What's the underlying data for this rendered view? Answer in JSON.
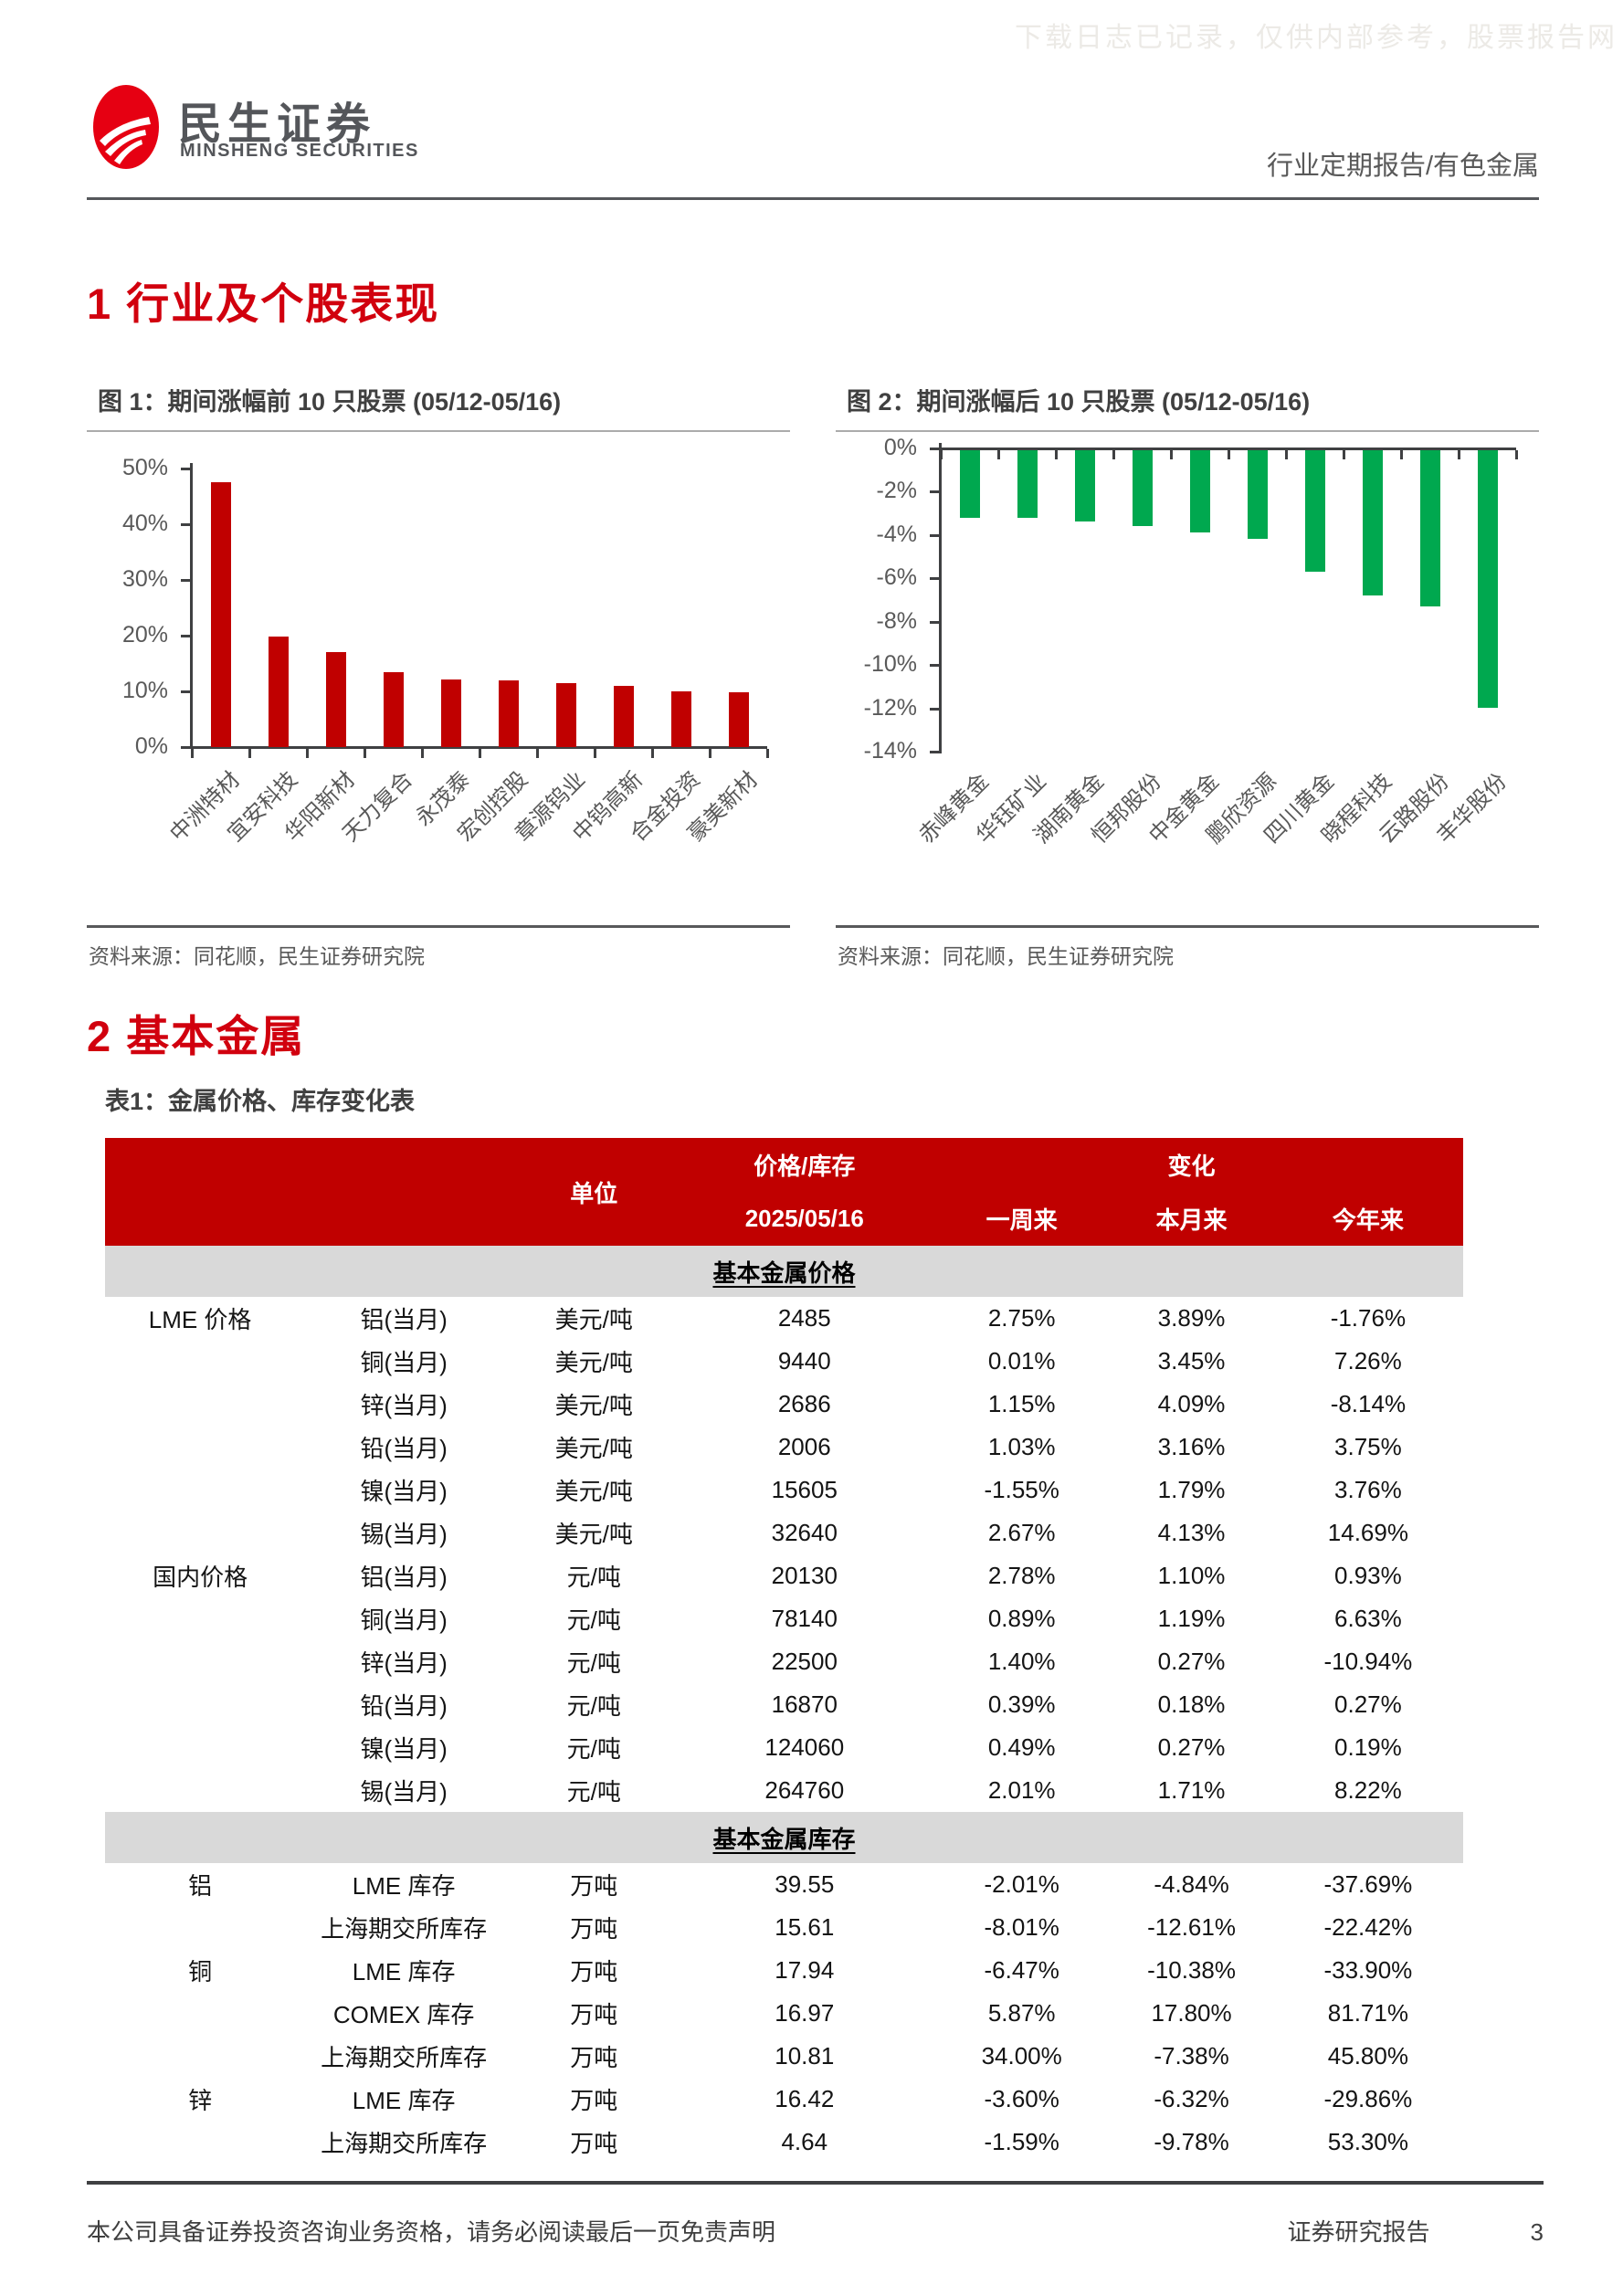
{
  "watermark": "下载日志已记录，仅供内部参考，股票报告网",
  "header": {
    "brand_cn": "民生证券",
    "brand_en": "MINSHENG SECURITIES",
    "report_type": "行业定期报告/有色金属"
  },
  "section1_title": "1 行业及个股表现",
  "section2_title": "2 基本金属",
  "colors": {
    "accent_red": "#d1000e",
    "table_header_red": "#c00000",
    "bar_red": "#c00000",
    "bar_green": "#00a84f",
    "subheader_gray": "#d9d9d9"
  },
  "chart_data": [
    {
      "type": "bar",
      "title": "图 1：期间涨幅前 10 只股票 (05/12-05/16)",
      "categories": [
        "中洲特材",
        "宜安科技",
        "华阳新材",
        "天力复合",
        "永茂泰",
        "宏创控股",
        "章源钨业",
        "中钨高新",
        "合金投资",
        "豪美新材"
      ],
      "values": [
        47.6,
        19.8,
        17.1,
        13.5,
        12.1,
        11.9,
        11.4,
        11.0,
        10.0,
        9.8
      ],
      "unit": "%",
      "ylim": [
        0,
        50
      ],
      "yticks_top_to_bottom": [
        "50%",
        "40%",
        "30%",
        "20%",
        "10%",
        "0%"
      ],
      "bar_color": "#c00000",
      "grid": false,
      "legend": "none",
      "source": "资料来源：同花顺，民生证券研究院"
    },
    {
      "type": "bar",
      "title": "图 2：期间涨幅后 10 只股票 (05/12-05/16)",
      "categories": [
        "赤峰黄金",
        "华钰矿业",
        "湖南黄金",
        "恒邦股份",
        "中金黄金",
        "鹏欣资源",
        "四川黄金",
        "晓程科技",
        "云路股份",
        "丰华股份"
      ],
      "values": [
        -3.1,
        -3.1,
        -3.3,
        -3.5,
        -3.8,
        -4.1,
        -5.6,
        -6.7,
        -7.2,
        -11.9
      ],
      "unit": "%",
      "ylim": [
        -14,
        0
      ],
      "yticks_top_to_bottom": [
        "0%",
        "-2%",
        "-4%",
        "-6%",
        "-8%",
        "-10%",
        "-12%",
        "-14%"
      ],
      "bar_color": "#00a84f",
      "grid": false,
      "legend": "none",
      "source": "资料来源：同花顺，民生证券研究院"
    }
  ],
  "table": {
    "title": "表1：金属价格、库存变化表",
    "header": {
      "unit": "单位",
      "price_inventory": "价格/库存",
      "change": "变化",
      "date": "2025/05/16",
      "week": "一周来",
      "month": "本月来",
      "year": "今年来"
    },
    "sections": [
      {
        "label": "基本金属价格",
        "rows": [
          {
            "group": "LME 价格",
            "item": "铝(当月)",
            "unit": "美元/吨",
            "value": "2485",
            "week": "2.75%",
            "month": "3.89%",
            "year": "-1.76%"
          },
          {
            "group": "",
            "item": "铜(当月)",
            "unit": "美元/吨",
            "value": "9440",
            "week": "0.01%",
            "month": "3.45%",
            "year": "7.26%"
          },
          {
            "group": "",
            "item": "锌(当月)",
            "unit": "美元/吨",
            "value": "2686",
            "week": "1.15%",
            "month": "4.09%",
            "year": "-8.14%"
          },
          {
            "group": "",
            "item": "铅(当月)",
            "unit": "美元/吨",
            "value": "2006",
            "week": "1.03%",
            "month": "3.16%",
            "year": "3.75%"
          },
          {
            "group": "",
            "item": "镍(当月)",
            "unit": "美元/吨",
            "value": "15605",
            "week": "-1.55%",
            "month": "1.79%",
            "year": "3.76%"
          },
          {
            "group": "",
            "item": "锡(当月)",
            "unit": "美元/吨",
            "value": "32640",
            "week": "2.67%",
            "month": "4.13%",
            "year": "14.69%"
          },
          {
            "group": "国内价格",
            "item": "铝(当月)",
            "unit": "元/吨",
            "value": "20130",
            "week": "2.78%",
            "month": "1.10%",
            "year": "0.93%"
          },
          {
            "group": "",
            "item": "铜(当月)",
            "unit": "元/吨",
            "value": "78140",
            "week": "0.89%",
            "month": "1.19%",
            "year": "6.63%"
          },
          {
            "group": "",
            "item": "锌(当月)",
            "unit": "元/吨",
            "value": "22500",
            "week": "1.40%",
            "month": "0.27%",
            "year": "-10.94%"
          },
          {
            "group": "",
            "item": "铅(当月)",
            "unit": "元/吨",
            "value": "16870",
            "week": "0.39%",
            "month": "0.18%",
            "year": "0.27%"
          },
          {
            "group": "",
            "item": "镍(当月)",
            "unit": "元/吨",
            "value": "124060",
            "week": "0.49%",
            "month": "0.27%",
            "year": "0.19%"
          },
          {
            "group": "",
            "item": "锡(当月)",
            "unit": "元/吨",
            "value": "264760",
            "week": "2.01%",
            "month": "1.71%",
            "year": "8.22%"
          }
        ]
      },
      {
        "label": "基本金属库存",
        "rows": [
          {
            "group": "铝",
            "item": "LME 库存",
            "unit": "万吨",
            "value": "39.55",
            "week": "-2.01%",
            "month": "-4.84%",
            "year": "-37.69%"
          },
          {
            "group": "",
            "item": "上海期交所库存",
            "unit": "万吨",
            "value": "15.61",
            "week": "-8.01%",
            "month": "-12.61%",
            "year": "-22.42%"
          },
          {
            "group": "铜",
            "item": "LME 库存",
            "unit": "万吨",
            "value": "17.94",
            "week": "-6.47%",
            "month": "-10.38%",
            "year": "-33.90%"
          },
          {
            "group": "",
            "item": "COMEX 库存",
            "unit": "万吨",
            "value": "16.97",
            "week": "5.87%",
            "month": "17.80%",
            "year": "81.71%"
          },
          {
            "group": "",
            "item": "上海期交所库存",
            "unit": "万吨",
            "value": "10.81",
            "week": "34.00%",
            "month": "-7.38%",
            "year": "45.80%"
          },
          {
            "group": "锌",
            "item": "LME 库存",
            "unit": "万吨",
            "value": "16.42",
            "week": "-3.60%",
            "month": "-6.32%",
            "year": "-29.86%"
          },
          {
            "group": "",
            "item": "上海期交所库存",
            "unit": "万吨",
            "value": "4.64",
            "week": "-1.59%",
            "month": "-9.78%",
            "year": "53.30%"
          }
        ]
      }
    ]
  },
  "footer": {
    "disclaimer": "本公司具备证券投资咨询业务资格，请务必阅读最后一页免责声明",
    "doc_type": "证券研究报告",
    "page_number": "3"
  }
}
